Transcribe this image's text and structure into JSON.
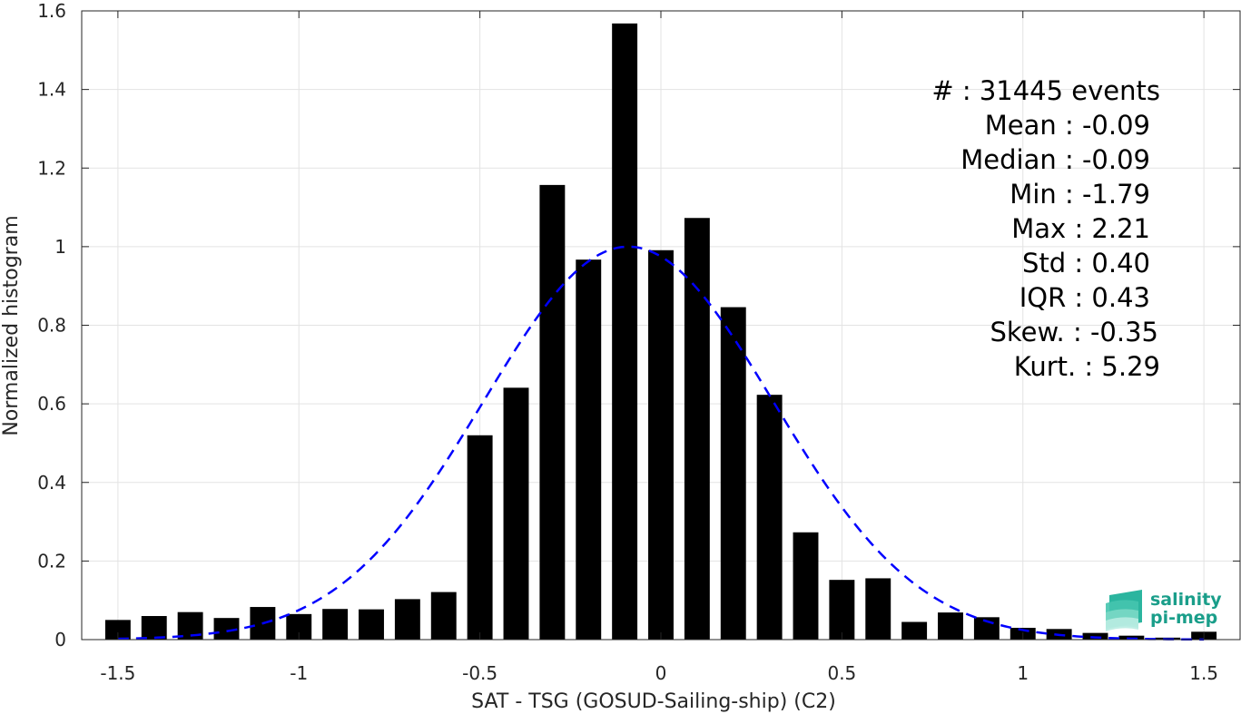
{
  "chart_data": {
    "type": "bar",
    "xlabel": "SAT - TSG (GOSUD-Sailing-ship) (C2)",
    "ylabel": "Normalized histogram",
    "xlim": [
      -1.6,
      1.6
    ],
    "ylim": [
      0,
      1.6
    ],
    "grid": true,
    "xticks": [
      -1.5,
      -1,
      -0.5,
      0,
      0.5,
      1,
      1.5
    ],
    "xtick_labels": [
      "-1.5",
      "-1",
      "-0.5",
      "0",
      "0.5",
      "1",
      "1.5"
    ],
    "yticks": [
      0,
      0.2,
      0.4,
      0.6,
      0.8,
      1,
      1.2,
      1.4,
      1.6
    ],
    "ytick_labels": [
      "0",
      "0.2",
      "0.4",
      "0.6",
      "0.8",
      "1",
      "1.2",
      "1.4",
      "1.6"
    ],
    "bin_centers": [
      -1.5,
      -1.4,
      -1.3,
      -1.2,
      -1.1,
      -1.0,
      -0.9,
      -0.8,
      -0.7,
      -0.6,
      -0.5,
      -0.4,
      -0.3,
      -0.2,
      -0.1,
      0.0,
      0.1,
      0.2,
      0.3,
      0.4,
      0.5,
      0.6,
      0.7,
      0.8,
      0.9,
      1.0,
      1.1,
      1.2,
      1.3,
      1.4,
      1.5
    ],
    "bin_width": 0.07,
    "values": [
      0.05,
      0.06,
      0.07,
      0.055,
      0.083,
      0.065,
      0.078,
      0.077,
      0.103,
      0.121,
      0.52,
      0.641,
      1.157,
      0.967,
      1.568,
      0.991,
      1.073,
      0.846,
      0.623,
      0.273,
      0.152,
      0.156,
      0.045,
      0.069,
      0.057,
      0.03,
      0.027,
      0.017,
      0.01,
      0.005,
      0.02
    ],
    "bar_color": "#000000",
    "fit": {
      "type": "gaussian",
      "mean": -0.09,
      "std": 0.4,
      "peak": 1.0,
      "style": "dashed",
      "color": "#0000ff"
    },
    "stats": [
      {
        "label": "#  : 31445 events"
      },
      {
        "label": "Mean : -0.09"
      },
      {
        "label": "Median : -0.09"
      },
      {
        "label": "Min : -1.79"
      },
      {
        "label": "Max : 2.21"
      },
      {
        "label": "Std : 0.40"
      },
      {
        "label": "IQR : 0.43"
      },
      {
        "label": "Skew. : -0.35"
      },
      {
        "label": "Kurt. : 5.29"
      }
    ]
  },
  "logo": {
    "line1": "salinity",
    "line2": "pi-mep",
    "color": "#1a9e8a"
  }
}
